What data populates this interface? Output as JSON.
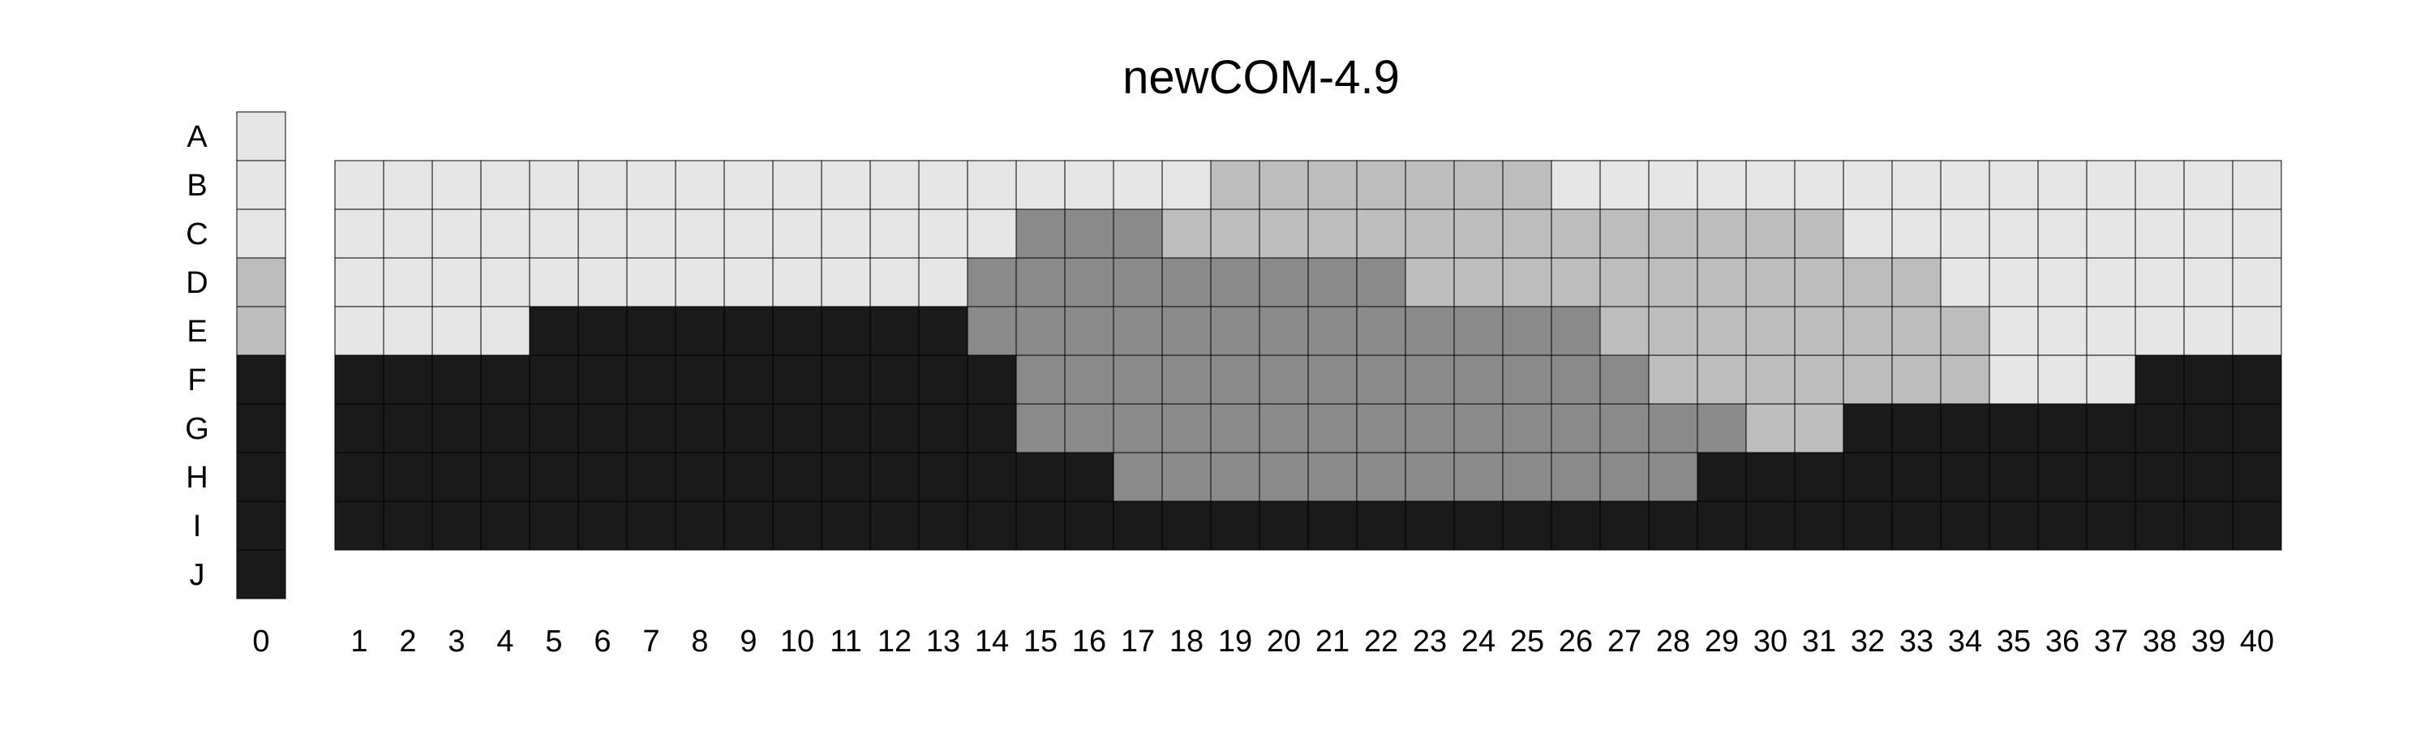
{
  "chart_data": {
    "type": "heatmap",
    "title": "newCOM-4.9",
    "row_labels": [
      "A",
      "B",
      "C",
      "D",
      "E",
      "F",
      "G",
      "H",
      "I",
      "J"
    ],
    "key_column": {
      "label": "0",
      "rows": [
        "A",
        "B",
        "C",
        "D",
        "E",
        "F",
        "G",
        "H",
        "I",
        "J"
      ],
      "levels": [
        0,
        0,
        0,
        1,
        1,
        3,
        3,
        3,
        3,
        3
      ]
    },
    "columns": [
      "1",
      "2",
      "3",
      "4",
      "5",
      "6",
      "7",
      "8",
      "9",
      "10",
      "11",
      "12",
      "13",
      "14",
      "15",
      "16",
      "17",
      "18",
      "19",
      "20",
      "21",
      "22",
      "23",
      "24",
      "25",
      "26",
      "27",
      "28",
      "29",
      "30",
      "31",
      "32",
      "33",
      "34",
      "35",
      "36",
      "37",
      "38",
      "39",
      "40"
    ],
    "grid_rows": [
      "B",
      "C",
      "D",
      "E",
      "F",
      "G",
      "H",
      "I"
    ],
    "levels_legend": {
      "0": "#e6e6e6",
      "1": "#bdbdbd",
      "2": "#8a8a8a",
      "3": "#1a1a1a"
    },
    "grid": [
      [
        0,
        0,
        0,
        0,
        0,
        0,
        0,
        0,
        0,
        0,
        0,
        0,
        0,
        0,
        0,
        0,
        0,
        0,
        1,
        1,
        1,
        1,
        1,
        1,
        1,
        0,
        0,
        0,
        0,
        0,
        0,
        0,
        0,
        0,
        0,
        0,
        0,
        0,
        0,
        0
      ],
      [
        0,
        0,
        0,
        0,
        0,
        0,
        0,
        0,
        0,
        0,
        0,
        0,
        0,
        0,
        2,
        2,
        2,
        1,
        1,
        1,
        1,
        1,
        1,
        1,
        1,
        1,
        1,
        1,
        1,
        1,
        1,
        0,
        0,
        0,
        0,
        0,
        0,
        0,
        0,
        0
      ],
      [
        0,
        0,
        0,
        0,
        0,
        0,
        0,
        0,
        0,
        0,
        0,
        0,
        0,
        2,
        2,
        2,
        2,
        2,
        2,
        2,
        2,
        2,
        1,
        1,
        1,
        1,
        1,
        1,
        1,
        1,
        1,
        1,
        1,
        0,
        0,
        0,
        0,
        0,
        0,
        0
      ],
      [
        0,
        0,
        0,
        0,
        3,
        3,
        3,
        3,
        3,
        3,
        3,
        3,
        3,
        2,
        2,
        2,
        2,
        2,
        2,
        2,
        2,
        2,
        2,
        2,
        2,
        2,
        1,
        1,
        1,
        1,
        1,
        1,
        1,
        1,
        0,
        0,
        0,
        0,
        0,
        0
      ],
      [
        3,
        3,
        3,
        3,
        3,
        3,
        3,
        3,
        3,
        3,
        3,
        3,
        3,
        3,
        2,
        2,
        2,
        2,
        2,
        2,
        2,
        2,
        2,
        2,
        2,
        2,
        2,
        1,
        1,
        1,
        1,
        1,
        1,
        1,
        0,
        0,
        0,
        3,
        3,
        3
      ],
      [
        3,
        3,
        3,
        3,
        3,
        3,
        3,
        3,
        3,
        3,
        3,
        3,
        3,
        3,
        2,
        2,
        2,
        2,
        2,
        2,
        2,
        2,
        2,
        2,
        2,
        2,
        2,
        2,
        2,
        1,
        1,
        3,
        3,
        3,
        3,
        3,
        3,
        3,
        3,
        3
      ],
      [
        3,
        3,
        3,
        3,
        3,
        3,
        3,
        3,
        3,
        3,
        3,
        3,
        3,
        3,
        3,
        3,
        2,
        2,
        2,
        2,
        2,
        2,
        2,
        2,
        2,
        2,
        2,
        2,
        3,
        3,
        3,
        3,
        3,
        3,
        3,
        3,
        3,
        3,
        3,
        3
      ],
      [
        3,
        3,
        3,
        3,
        3,
        3,
        3,
        3,
        3,
        3,
        3,
        3,
        3,
        3,
        3,
        3,
        3,
        3,
        3,
        3,
        3,
        3,
        3,
        3,
        3,
        3,
        3,
        3,
        3,
        3,
        3,
        3,
        3,
        3,
        3,
        3,
        3,
        3,
        3,
        3
      ]
    ]
  }
}
